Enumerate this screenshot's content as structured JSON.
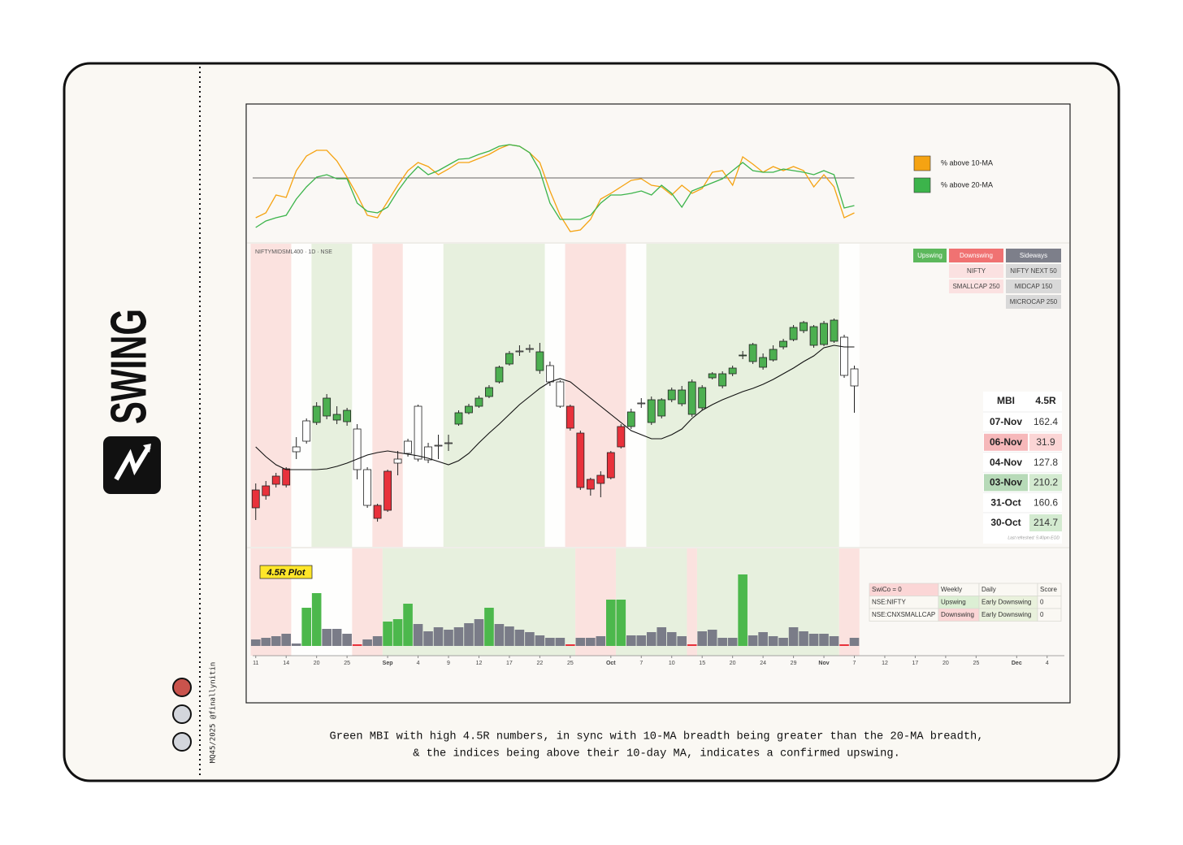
{
  "card": {
    "logo_text": "SWING",
    "credit": "MQ45/2025 @finallynitin",
    "caption": [
      "Green MBI with high 4.5R numbers, in sync with 10-MA breadth being greater than the 20-MA breadth,",
      "& the indices being above their 10-day MA, indicates a confirmed upswing."
    ]
  },
  "chart_data": [
    {
      "type": "line",
      "x": [
        0,
        1,
        2,
        3,
        4,
        5,
        6,
        7,
        8,
        9,
        10,
        11,
        12,
        13,
        14,
        15,
        16,
        17,
        18,
        19,
        20,
        21,
        22,
        23,
        24,
        25,
        26,
        27,
        28,
        29,
        30,
        31,
        32,
        33,
        34,
        35,
        36,
        37,
        38,
        39,
        40,
        41,
        42,
        43,
        44,
        45,
        46,
        47,
        48,
        49,
        50,
        51,
        52,
        53,
        54,
        55,
        56,
        57,
        58,
        59
      ],
      "xlim": [
        -0.3,
        79.7
      ],
      "ylim": [
        0,
        150
      ],
      "hline": 81,
      "legend": "right",
      "series": [
        {
          "name": "% above 10-MA",
          "color": "#f5a312",
          "values": [
            32,
            38,
            60,
            57,
            90,
            108,
            115,
            115,
            102,
            82,
            60,
            35,
            32,
            52,
            72,
            90,
            100,
            95,
            85,
            92,
            100,
            100,
            105,
            110,
            117,
            122,
            120,
            112,
            100,
            65,
            35,
            15,
            17,
            30,
            55,
            62,
            70,
            78,
            80,
            72,
            70,
            60,
            72,
            62,
            68,
            88,
            90,
            72,
            107,
            98,
            88,
            95,
            90,
            95,
            90,
            70,
            85,
            70,
            32,
            38
          ]
        },
        {
          "name": "% above 20-MA",
          "color": "#3cb44b",
          "values": [
            20,
            28,
            32,
            35,
            55,
            70,
            82,
            85,
            80,
            80,
            50,
            40,
            38,
            45,
            65,
            82,
            95,
            85,
            90,
            97,
            104,
            105,
            110,
            114,
            120,
            122,
            120,
            112,
            90,
            50,
            30,
            30,
            30,
            35,
            50,
            60,
            60,
            62,
            65,
            60,
            72,
            62,
            45,
            65,
            70,
            75,
            80,
            90,
            100,
            90,
            88,
            88,
            92,
            90,
            88,
            85,
            90,
            85,
            44,
            47
          ]
        }
      ]
    },
    {
      "type": "candlestick",
      "title": "NIFTYMIDSML400 · 1D · NSE",
      "x": [
        0,
        1,
        2,
        3,
        4,
        5,
        6,
        7,
        8,
        9,
        10,
        11,
        12,
        13,
        14,
        15,
        16,
        17,
        18,
        19,
        20,
        21,
        22,
        23,
        24,
        25,
        26,
        27,
        28,
        29,
        30,
        31,
        32,
        33,
        34,
        35,
        36,
        37,
        38,
        39,
        40,
        41,
        42,
        43,
        44,
        45,
        46,
        47,
        48,
        49,
        50,
        51,
        52,
        53,
        54,
        55,
        56,
        57,
        58,
        59
      ],
      "xlim": [
        -0.3,
        79.7
      ],
      "ylim": [
        -23,
        350
      ],
      "open": [
        47,
        52,
        64,
        73,
        94,
        107,
        130,
        138,
        133,
        131,
        122,
        72,
        28,
        70,
        80,
        92,
        85,
        84,
        101,
        104,
        128,
        142,
        150,
        162,
        180,
        202,
        217,
        220,
        194,
        200,
        180,
        150,
        117,
        60,
        65,
        93,
        125,
        125,
        153,
        130,
        138,
        158,
        153,
        140,
        148,
        185,
        175,
        190,
        212,
        205,
        198,
        207,
        223,
        232,
        243,
        225,
        226,
        230,
        235,
        196
      ],
      "high": [
        55,
        58,
        68,
        75,
        112,
        135,
        155,
        165,
        150,
        148,
        128,
        75,
        30,
        72,
        95,
        110,
        152,
        105,
        115,
        115,
        145,
        153,
        163,
        176,
        200,
        218,
        225,
        226,
        228,
        205,
        182,
        152,
        120,
        62,
        70,
        95,
        128,
        147,
        160,
        162,
        160,
        173,
        175,
        183,
        176,
        192,
        193,
        200,
        218,
        228,
        215,
        225,
        233,
        250,
        255,
        250,
        255,
        258,
        238,
        200
      ],
      "low": [
        10,
        35,
        50,
        50,
        85,
        104,
        127,
        134,
        128,
        126,
        60,
        25,
        8,
        20,
        65,
        88,
        82,
        80,
        85,
        95,
        126,
        140,
        148,
        160,
        178,
        200,
        212,
        216,
        190,
        175,
        148,
        120,
        47,
        40,
        38,
        60,
        98,
        122,
        148,
        127,
        135,
        155,
        150,
        137,
        145,
        183,
        172,
        187,
        208,
        202,
        195,
        205,
        220,
        230,
        240,
        222,
        224,
        228,
        185,
        142
      ],
      "close": [
        25,
        40,
        54,
        53,
        100,
        132,
        150,
        160,
        140,
        145,
        72,
        28,
        12,
        22,
        85,
        107,
        150,
        100,
        102,
        105,
        142,
        150,
        160,
        173,
        198,
        215,
        218,
        221,
        217,
        180,
        150,
        123,
        50,
        48,
        55,
        62,
        100,
        143,
        154,
        158,
        158,
        170,
        170,
        180,
        173,
        190,
        190,
        197,
        213,
        226,
        210,
        220,
        230,
        247,
        253,
        248,
        252,
        256,
        188,
        175
      ],
      "colors": [
        "#e8313b",
        "#e8313b",
        "#e8313b",
        "#e8313b",
        "#ffffff",
        "#ffffff",
        "#4caf50",
        "#4caf50",
        "#4caf50",
        "#4caf50",
        "#ffffff",
        "#ffffff",
        "#e8313b",
        "#e8313b",
        "#ffffff",
        "#ffffff",
        "#ffffff",
        "#ffffff",
        "#ffffff",
        "#ffffff",
        "#4caf50",
        "#4caf50",
        "#4caf50",
        "#4caf50",
        "#4caf50",
        "#4caf50",
        "#ffffff",
        "#ffffff",
        "#4caf50",
        "#ffffff",
        "#ffffff",
        "#e8313b",
        "#e8313b",
        "#e8313b",
        "#e8313b",
        "#e8313b",
        "#e8313b",
        "#4caf50",
        "#ffffff",
        "#4caf50",
        "#4caf50",
        "#4caf50",
        "#4caf50",
        "#4caf50",
        "#4caf50",
        "#4caf50",
        "#4caf50",
        "#4caf50",
        "#4caf50",
        "#4caf50",
        "#4caf50",
        "#4caf50",
        "#4caf50",
        "#4caf50",
        "#4caf50",
        "#4caf50",
        "#4caf50",
        "#4caf50",
        "#ffffff",
        "#ffffff"
      ],
      "ma": {
        "color": "#111111",
        "values": [
          100,
          88,
          78,
          72,
          72,
          72,
          72,
          73,
          76,
          80,
          85,
          90,
          93,
          95,
          93,
          91,
          89,
          86,
          82,
          78,
          83,
          92,
          105,
          117,
          128,
          140,
          152,
          162,
          172,
          180,
          184,
          180,
          170,
          160,
          150,
          140,
          130,
          120,
          115,
          110,
          110,
          115,
          122,
          135,
          145,
          152,
          158,
          163,
          168,
          172,
          177,
          183,
          190,
          197,
          205,
          212,
          222,
          225,
          223,
          223
        ]
      },
      "zones": [
        {
          "start": 0,
          "end": 3,
          "color": "#fbe2df"
        },
        {
          "start": 4,
          "end": 5,
          "color": "#fefefd"
        },
        {
          "start": 6,
          "end": 9,
          "color": "#e7f0de"
        },
        {
          "start": 10,
          "end": 11,
          "color": "#fefefd"
        },
        {
          "start": 12,
          "end": 14,
          "color": "#fbe2df"
        },
        {
          "start": 15,
          "end": 18,
          "color": "#fefefd"
        },
        {
          "start": 19,
          "end": 28,
          "color": "#e7f0de"
        },
        {
          "start": 29,
          "end": 30,
          "color": "#fefefd"
        },
        {
          "start": 31,
          "end": 36,
          "color": "#fbe2df"
        },
        {
          "start": 37,
          "end": 38,
          "color": "#fefefd"
        },
        {
          "start": 39,
          "end": 57,
          "color": "#e7f0de"
        },
        {
          "start": 58,
          "end": 59,
          "color": "#fefefd"
        }
      ],
      "zone_table": {
        "columns": [
          {
            "name": "Upswing",
            "color": "#5cb85c",
            "cell_color": "#dff0d8",
            "items": []
          },
          {
            "name": "Downswing",
            "color": "#f07272",
            "cell_color": "#fbe1e1",
            "items": [
              "NIFTY",
              "SMALLCAP 250"
            ]
          },
          {
            "name": "Sideways",
            "color": "#7d7f8a",
            "cell_color": "#d9d9d9",
            "items": [
              "NIFTY NEXT 50",
              "MIDCAP 150",
              "MICROCAP 250"
            ]
          }
        ]
      },
      "mbi_table": {
        "headers": [
          "MBI",
          "4.5R"
        ],
        "rows": [
          [
            "07-Nov",
            162.4
          ],
          [
            "06-Nov",
            31.9
          ],
          [
            "04-Nov",
            127.8
          ],
          [
            "03-Nov",
            210.2
          ],
          [
            "31-Oct",
            160.6
          ],
          [
            "30-Oct",
            214.7
          ]
        ],
        "date_colors": [
          "#ffffff",
          "#f6b8ba",
          "#ffffff",
          "#b7dab8",
          "#ffffff",
          "#ffffff"
        ],
        "value_colors": [
          "#ffffff",
          "#fbd5d5",
          "#ffffff",
          "#d3ead0",
          "#ffffff",
          "#d3ead0"
        ],
        "note": "Last refreshed: 5:40pm EOD"
      }
    },
    {
      "type": "bar",
      "title": "4.5R Plot",
      "x": [
        0,
        1,
        2,
        3,
        4,
        5,
        6,
        7,
        8,
        9,
        10,
        11,
        12,
        13,
        14,
        15,
        16,
        17,
        18,
        19,
        20,
        21,
        22,
        23,
        24,
        25,
        26,
        27,
        28,
        29,
        30,
        31,
        32,
        33,
        34,
        35,
        36,
        37,
        38,
        39,
        40,
        41,
        42,
        43,
        44,
        45,
        46,
        47,
        48,
        49,
        50,
        51,
        52,
        53,
        54,
        55,
        56,
        57,
        58,
        59
      ],
      "xlim": [
        -0.3,
        79.7
      ],
      "ylim": [
        0,
        100
      ],
      "values": [
        8,
        10,
        12,
        15,
        3,
        47,
        65,
        21,
        21,
        15,
        2,
        8,
        12,
        30,
        33,
        52,
        27,
        18,
        23,
        20,
        23,
        28,
        33,
        47,
        27,
        24,
        20,
        17,
        13,
        10,
        10,
        2,
        10,
        10,
        12,
        57,
        57,
        13,
        13,
        17,
        23,
        17,
        12,
        2,
        18,
        20,
        10,
        10,
        88,
        13,
        17,
        12,
        10,
        23,
        18,
        15,
        15,
        12,
        2,
        10
      ],
      "colors": [
        "#7a7c88",
        "#7a7c88",
        "#7a7c88",
        "#7a7c88",
        "#7a7c88",
        "#4cb84c",
        "#4cb84c",
        "#7a7c88",
        "#7a7c88",
        "#7a7c88",
        "#e8313b",
        "#7a7c88",
        "#7a7c88",
        "#4cb84c",
        "#4cb84c",
        "#4cb84c",
        "#7a7c88",
        "#7a7c88",
        "#7a7c88",
        "#7a7c88",
        "#7a7c88",
        "#7a7c88",
        "#7a7c88",
        "#4cb84c",
        "#7a7c88",
        "#7a7c88",
        "#7a7c88",
        "#7a7c88",
        "#7a7c88",
        "#7a7c88",
        "#7a7c88",
        "#e8313b",
        "#7a7c88",
        "#7a7c88",
        "#7a7c88",
        "#4cb84c",
        "#4cb84c",
        "#7a7c88",
        "#7a7c88",
        "#7a7c88",
        "#7a7c88",
        "#7a7c88",
        "#7a7c88",
        "#e8313b",
        "#7a7c88",
        "#7a7c88",
        "#7a7c88",
        "#7a7c88",
        "#4cb84c",
        "#7a7c88",
        "#7a7c88",
        "#7a7c88",
        "#7a7c88",
        "#7a7c88",
        "#7a7c88",
        "#7a7c88",
        "#7a7c88",
        "#7a7c88",
        "#e8313b",
        "#7a7c88"
      ],
      "zones": [
        {
          "start": 0,
          "end": 3,
          "color": "#fbe2df"
        },
        {
          "start": 4,
          "end": 9,
          "color": "#fefefd"
        },
        {
          "start": 10,
          "end": 12,
          "color": "#fbe2df"
        },
        {
          "start": 13,
          "end": 31,
          "color": "#e7f0de"
        },
        {
          "start": 32,
          "end": 35,
          "color": "#fbe2df"
        },
        {
          "start": 36,
          "end": 42,
          "color": "#e7f0de"
        },
        {
          "start": 43,
          "end": 43,
          "color": "#fbe2df"
        },
        {
          "start": 44,
          "end": 57,
          "color": "#e7f0de"
        },
        {
          "start": 58,
          "end": 59,
          "color": "#fbe2df"
        }
      ],
      "xticks": [
        {
          "value": 0,
          "label": "11"
        },
        {
          "value": 3,
          "label": "14"
        },
        {
          "value": 6,
          "label": "20"
        },
        {
          "value": 9,
          "label": "25"
        },
        {
          "value": 13,
          "label": "Sep"
        },
        {
          "value": 16,
          "label": "4"
        },
        {
          "value": 19,
          "label": "9"
        },
        {
          "value": 22,
          "label": "12"
        },
        {
          "value": 25,
          "label": "17"
        },
        {
          "value": 28,
          "label": "22"
        },
        {
          "value": 31,
          "label": "25"
        },
        {
          "value": 35,
          "label": "Oct"
        },
        {
          "value": 38,
          "label": "7"
        },
        {
          "value": 41,
          "label": "10"
        },
        {
          "value": 44,
          "label": "15"
        },
        {
          "value": 47,
          "label": "20"
        },
        {
          "value": 50,
          "label": "24"
        },
        {
          "value": 53,
          "label": "29"
        },
        {
          "value": 56,
          "label": "Nov"
        },
        {
          "value": 59,
          "label": "7"
        },
        {
          "value": 62,
          "label": "12"
        },
        {
          "value": 65,
          "label": "17"
        },
        {
          "value": 68,
          "label": "20"
        },
        {
          "value": 71,
          "label": "25"
        },
        {
          "value": 75,
          "label": "Dec"
        },
        {
          "value": 78,
          "label": "4"
        }
      ],
      "swico_table": {
        "headers": [
          "SwiCo = 0",
          "Weekly",
          "Daily",
          "Score"
        ],
        "rows": [
          [
            "NSE:NIFTY",
            "Upswing",
            "Early Downswing",
            0
          ],
          [
            "NSE:CNXSMALLCAP",
            "Downswing",
            "Early Downswing",
            0
          ]
        ],
        "header_colors": [
          "#fbd6d6",
          "#faf8f3",
          "#faf8f3",
          "#faf8f3"
        ],
        "cell_colors": [
          [
            "#faf8f3",
            "#dcefd4",
            "#e9f1dc",
            "#faf8f3"
          ],
          [
            "#faf8f3",
            "#fbd6d6",
            "#e9f1dc",
            "#faf8f3"
          ]
        ]
      }
    }
  ]
}
